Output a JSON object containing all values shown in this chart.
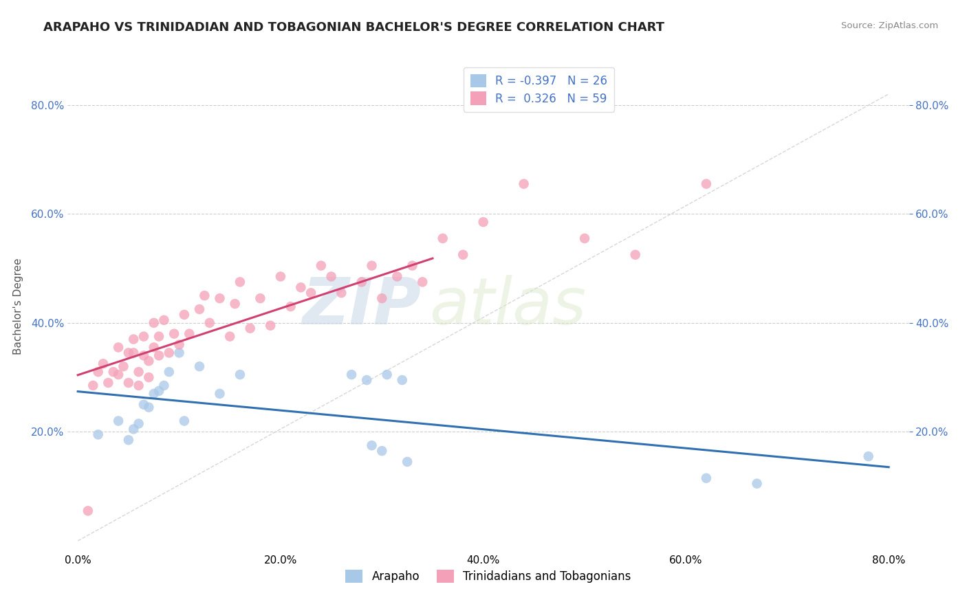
{
  "title": "ARAPAHO VS TRINIDADIAN AND TOBAGONIAN BACHELOR'S DEGREE CORRELATION CHART",
  "source_text": "Source: ZipAtlas.com",
  "ylabel": "Bachelor's Degree",
  "xlim": [
    -0.01,
    0.82
  ],
  "ylim": [
    -0.02,
    0.88
  ],
  "xtick_vals": [
    0.0,
    0.2,
    0.4,
    0.6,
    0.8
  ],
  "ytick_vals": [
    0.2,
    0.4,
    0.6,
    0.8
  ],
  "arapaho_color": "#a8c8e8",
  "trinidadian_color": "#f4a0b8",
  "arapaho_line_color": "#3070b0",
  "trinidadian_line_color": "#d04070",
  "R_arapaho": -0.397,
  "N_arapaho": 26,
  "R_trinidadian": 0.326,
  "N_trinidadian": 59,
  "legend_label_arapaho": "Arapaho",
  "legend_label_trinidadian": "Trinidadians and Tobagonians",
  "watermark_zip": "ZIP",
  "watermark_atlas": "atlas",
  "arapaho_x": [
    0.02,
    0.04,
    0.05,
    0.055,
    0.06,
    0.065,
    0.07,
    0.075,
    0.08,
    0.085,
    0.09,
    0.1,
    0.105,
    0.12,
    0.14,
    0.16,
    0.27,
    0.285,
    0.29,
    0.3,
    0.305,
    0.32,
    0.325,
    0.62,
    0.67,
    0.78
  ],
  "arapaho_y": [
    0.195,
    0.22,
    0.185,
    0.205,
    0.215,
    0.25,
    0.245,
    0.27,
    0.275,
    0.285,
    0.31,
    0.345,
    0.22,
    0.32,
    0.27,
    0.305,
    0.305,
    0.295,
    0.175,
    0.165,
    0.305,
    0.295,
    0.145,
    0.115,
    0.105,
    0.155
  ],
  "trinidadian_x": [
    0.01,
    0.015,
    0.02,
    0.025,
    0.03,
    0.035,
    0.04,
    0.04,
    0.045,
    0.05,
    0.05,
    0.055,
    0.055,
    0.06,
    0.06,
    0.065,
    0.065,
    0.07,
    0.07,
    0.075,
    0.075,
    0.08,
    0.08,
    0.085,
    0.09,
    0.095,
    0.1,
    0.105,
    0.11,
    0.12,
    0.125,
    0.13,
    0.14,
    0.15,
    0.155,
    0.16,
    0.17,
    0.18,
    0.19,
    0.2,
    0.21,
    0.22,
    0.23,
    0.24,
    0.25,
    0.26,
    0.28,
    0.29,
    0.3,
    0.315,
    0.33,
    0.34,
    0.36,
    0.38,
    0.4,
    0.44,
    0.5,
    0.55,
    0.62
  ],
  "trinidadian_y": [
    0.055,
    0.285,
    0.31,
    0.325,
    0.29,
    0.31,
    0.355,
    0.305,
    0.32,
    0.345,
    0.29,
    0.345,
    0.37,
    0.285,
    0.31,
    0.34,
    0.375,
    0.3,
    0.33,
    0.355,
    0.4,
    0.34,
    0.375,
    0.405,
    0.345,
    0.38,
    0.36,
    0.415,
    0.38,
    0.425,
    0.45,
    0.4,
    0.445,
    0.375,
    0.435,
    0.475,
    0.39,
    0.445,
    0.395,
    0.485,
    0.43,
    0.465,
    0.455,
    0.505,
    0.485,
    0.455,
    0.475,
    0.505,
    0.445,
    0.485,
    0.505,
    0.475,
    0.555,
    0.525,
    0.585,
    0.655,
    0.555,
    0.525,
    0.655
  ]
}
